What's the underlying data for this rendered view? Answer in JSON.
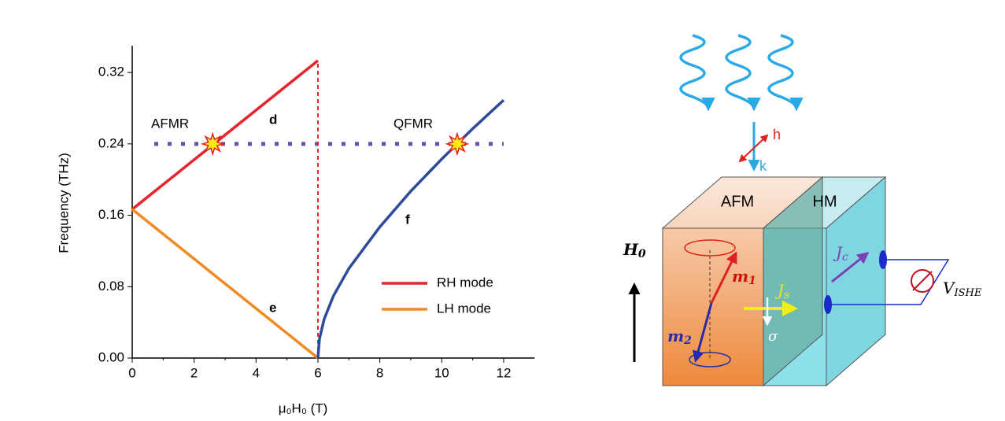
{
  "chart_data": {
    "type": "line",
    "xlabel": "μ₀H₀ (T)",
    "ylabel": "Frequency (THz)",
    "xlim": [
      0,
      13
    ],
    "ylim": [
      0,
      0.35
    ],
    "xticks": [
      0,
      2,
      4,
      6,
      8,
      10,
      12
    ],
    "yticks": [
      {
        "value": 0,
        "label": "0.00"
      },
      0.08,
      0.16,
      0.24,
      0.32
    ],
    "legend": "lower right",
    "series": [
      {
        "name": "RH mode",
        "color": "#e8212b",
        "x": [
          0,
          6
        ],
        "values": [
          0.1667,
          0.3333
        ]
      },
      {
        "name": "LH mode",
        "color": "#f08a24",
        "x": [
          0,
          6
        ],
        "values": [
          0.1667,
          0
        ]
      },
      {
        "color": "#2e4b9b",
        "x": [
          6,
          6.05,
          6.2,
          6.5,
          7,
          8,
          9,
          10,
          11,
          12
        ],
        "values": [
          0,
          0.0216,
          0.0435,
          0.0696,
          0.1004,
          0.147,
          0.187,
          0.223,
          0.257,
          0.289
        ]
      }
    ],
    "hline": {
      "value": 0.24,
      "color": "#6a4fb0"
    },
    "vline": {
      "value": 6,
      "top": 0.3333,
      "color": "#e8212b"
    },
    "markers": {
      "x": [
        2.6,
        10.5
      ],
      "values": [
        0.24,
        0.24
      ]
    },
    "annotations": [
      "AFMR",
      "d",
      "QFMR",
      "e",
      "f"
    ]
  },
  "diagram": {
    "h": "h",
    "k": "k",
    "afm": "AFM",
    "hm": "HM",
    "H0": {
      "text": "H",
      "sub": "0"
    },
    "m1": {
      "text": "m",
      "sub": "1"
    },
    "m2": {
      "text": "m",
      "sub": "2"
    },
    "Js": {
      "text": "J",
      "sub": "s"
    },
    "sigma": "σ",
    "Jc": {
      "text": "J",
      "sub": "c"
    },
    "V": {
      "text": "V",
      "sub": "ISHE"
    }
  }
}
